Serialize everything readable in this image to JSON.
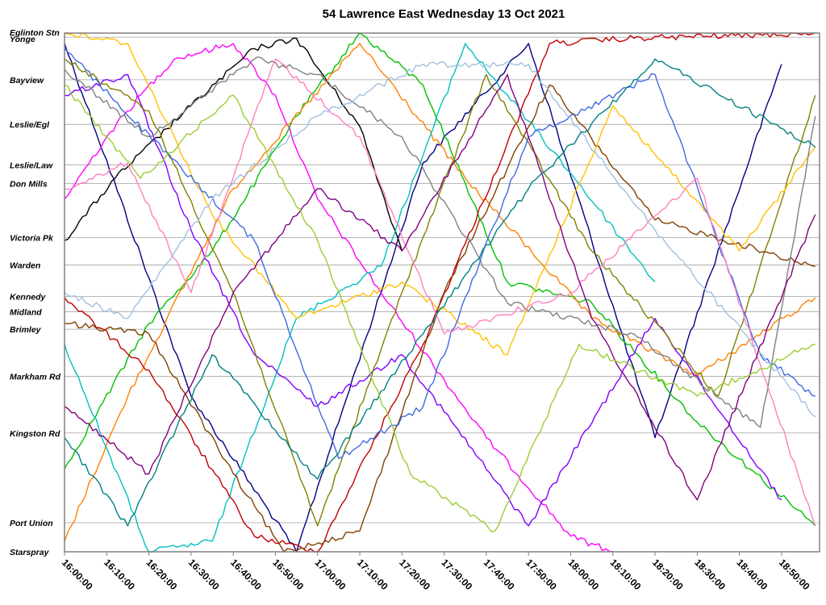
{
  "chart_data": {
    "type": "line",
    "title": "54 Lawrence East Wednesday 13 Oct 2021",
    "xlabel": "",
    "ylabel": "",
    "x_start": "16:00:00",
    "x_end": "18:59:00",
    "x_ticks": [
      "16:00:00",
      "16:10:00",
      "16:20:00",
      "16:30:00",
      "16:40:00",
      "16:50:00",
      "17:00:00",
      "17:10:00",
      "17:20:00",
      "17:30:00",
      "17:40:00",
      "17:50:00",
      "18:00:00",
      "18:10:00",
      "18:20:00",
      "18:30:00",
      "18:40:00",
      "18:50:00"
    ],
    "grid": true,
    "stops": [
      {
        "name": "Eglinton Stn",
        "fraction": 0.0
      },
      {
        "name": "Yonge",
        "fraction": 0.008
      },
      {
        "name": "Bayview",
        "fraction": 0.09
      },
      {
        "name": "Leslie/Egl",
        "fraction": 0.176
      },
      {
        "name": "Leslie/Law",
        "fraction": 0.254
      },
      {
        "name": "Don Mills",
        "fraction": 0.29
      },
      {
        "name": "Victoria Pk",
        "fraction": 0.394
      },
      {
        "name": "Warden",
        "fraction": 0.447
      },
      {
        "name": "Kennedy",
        "fraction": 0.508
      },
      {
        "name": "Midland",
        "fraction": 0.537
      },
      {
        "name": "Brimley",
        "fraction": 0.571
      },
      {
        "name": "Markham Rd",
        "fraction": 0.662
      },
      {
        "name": "Kingston Rd",
        "fraction": 0.771
      },
      {
        "name": "Port Union",
        "fraction": 0.944
      },
      {
        "name": "Starspray",
        "fraction": 1.0
      }
    ],
    "series": [
      {
        "color": "#000080",
        "values": [
          [
            0,
            0.02
          ],
          [
            30,
            0.7
          ],
          [
            55,
            1.0
          ],
          [
            85,
            0.25
          ],
          [
            110,
            0.02
          ],
          [
            140,
            0.78
          ],
          [
            170,
            0.06
          ]
        ]
      },
      {
        "color": "#ff00ff",
        "values": [
          [
            0,
            0.32
          ],
          [
            10,
            0.2
          ],
          [
            18,
            0.12
          ],
          [
            26,
            0.05
          ],
          [
            40,
            0.02
          ],
          [
            50,
            0.12
          ],
          [
            60,
            0.32
          ],
          [
            75,
            0.5
          ],
          [
            100,
            0.78
          ],
          [
            120,
            0.97
          ],
          [
            130,
            1.0
          ]
        ]
      },
      {
        "color": "#000000",
        "values": [
          [
            0,
            0.4
          ],
          [
            12,
            0.28
          ],
          [
            30,
            0.14
          ],
          [
            45,
            0.03
          ],
          [
            55,
            0.01
          ],
          [
            70,
            0.18
          ],
          [
            80,
            0.42
          ]
        ]
      },
      {
        "color": "#00c000",
        "values": [
          [
            0,
            0.84
          ],
          [
            20,
            0.56
          ],
          [
            35,
            0.42
          ],
          [
            55,
            0.16
          ],
          [
            70,
            0.0
          ],
          [
            85,
            0.1
          ],
          [
            105,
            0.48
          ],
          [
            125,
            0.52
          ],
          [
            150,
            0.75
          ],
          [
            178,
            0.95
          ]
        ]
      },
      {
        "color": "#ff8000",
        "values": [
          [
            0,
            0.98
          ],
          [
            15,
            0.7
          ],
          [
            40,
            0.3
          ],
          [
            70,
            0.02
          ],
          [
            95,
            0.28
          ],
          [
            125,
            0.55
          ],
          [
            150,
            0.66
          ],
          [
            178,
            0.51
          ]
        ]
      },
      {
        "color": "#00c0c0",
        "values": [
          [
            0,
            0.6
          ],
          [
            20,
            1.0
          ],
          [
            35,
            0.98
          ],
          [
            55,
            0.55
          ],
          [
            75,
            0.45
          ],
          [
            95,
            0.02
          ],
          [
            120,
            0.27
          ],
          [
            140,
            0.48
          ]
        ]
      },
      {
        "color": "#c00000",
        "values": [
          [
            0,
            0.51
          ],
          [
            20,
            0.65
          ],
          [
            45,
            0.97
          ],
          [
            60,
            1.0
          ],
          [
            85,
            0.6
          ],
          [
            115,
            0.02
          ],
          [
            135,
            0.01
          ],
          [
            178,
            0.0
          ]
        ]
      },
      {
        "color": "#8000ff",
        "values": [
          [
            0,
            0.12
          ],
          [
            15,
            0.08
          ],
          [
            30,
            0.38
          ],
          [
            45,
            0.62
          ],
          [
            60,
            0.72
          ],
          [
            80,
            0.62
          ],
          [
            110,
            0.95
          ],
          [
            140,
            0.55
          ],
          [
            170,
            0.9
          ]
        ]
      },
      {
        "color": "#808000",
        "values": [
          [
            0,
            0.05
          ],
          [
            20,
            0.15
          ],
          [
            40,
            0.5
          ],
          [
            60,
            0.95
          ],
          [
            80,
            0.5
          ],
          [
            100,
            0.08
          ],
          [
            125,
            0.42
          ],
          [
            155,
            0.7
          ],
          [
            178,
            0.12
          ]
        ]
      },
      {
        "color": "#804000",
        "values": [
          [
            0,
            0.56
          ],
          [
            20,
            0.58
          ],
          [
            40,
            0.85
          ],
          [
            52,
            1.0
          ],
          [
            70,
            0.96
          ],
          [
            90,
            0.5
          ],
          [
            115,
            0.1
          ],
          [
            140,
            0.36
          ],
          [
            178,
            0.45
          ]
        ]
      },
      {
        "color": "#ffc000",
        "values": [
          [
            0,
            0.0
          ],
          [
            15,
            0.02
          ],
          [
            35,
            0.35
          ],
          [
            55,
            0.55
          ],
          [
            80,
            0.48
          ],
          [
            105,
            0.62
          ],
          [
            130,
            0.14
          ],
          [
            160,
            0.42
          ],
          [
            178,
            0.22
          ]
        ]
      },
      {
        "color": "#808080",
        "values": [
          [
            0,
            0.07
          ],
          [
            20,
            0.2
          ],
          [
            45,
            0.05
          ],
          [
            60,
            0.08
          ],
          [
            80,
            0.2
          ],
          [
            105,
            0.52
          ],
          [
            135,
            0.58
          ],
          [
            165,
            0.76
          ],
          [
            178,
            0.16
          ]
        ]
      },
      {
        "color": "#4169e1",
        "values": [
          [
            0,
            0.03
          ],
          [
            25,
            0.24
          ],
          [
            45,
            0.4
          ],
          [
            65,
            0.82
          ],
          [
            85,
            0.72
          ],
          [
            110,
            0.2
          ],
          [
            140,
            0.08
          ],
          [
            165,
            0.62
          ],
          [
            178,
            0.7
          ]
        ]
      },
      {
        "color": "#ff80c0",
        "values": [
          [
            0,
            0.3
          ],
          [
            15,
            0.25
          ],
          [
            30,
            0.5
          ],
          [
            50,
            0.05
          ],
          [
            70,
            0.2
          ],
          [
            90,
            0.58
          ],
          [
            120,
            0.5
          ],
          [
            150,
            0.28
          ],
          [
            178,
            0.95
          ]
        ]
      },
      {
        "color": "#a0c0e0",
        "values": [
          [
            0,
            0.5
          ],
          [
            15,
            0.55
          ],
          [
            35,
            0.32
          ],
          [
            60,
            0.16
          ],
          [
            85,
            0.06
          ],
          [
            110,
            0.06
          ],
          [
            140,
            0.38
          ],
          [
            178,
            0.74
          ]
        ]
      },
      {
        "color": "#800080",
        "values": [
          [
            0,
            0.72
          ],
          [
            20,
            0.85
          ],
          [
            40,
            0.5
          ],
          [
            60,
            0.3
          ],
          [
            80,
            0.42
          ],
          [
            105,
            0.08
          ],
          [
            125,
            0.55
          ],
          [
            150,
            0.9
          ],
          [
            178,
            0.35
          ]
        ]
      },
      {
        "color": "#008080",
        "values": [
          [
            0,
            0.78
          ],
          [
            15,
            0.95
          ],
          [
            35,
            0.62
          ],
          [
            60,
            0.86
          ],
          [
            85,
            0.58
          ],
          [
            110,
            0.3
          ],
          [
            140,
            0.05
          ],
          [
            178,
            0.22
          ]
        ]
      },
      {
        "color": "#9acd32",
        "values": [
          [
            0,
            0.1
          ],
          [
            18,
            0.28
          ],
          [
            40,
            0.12
          ],
          [
            60,
            0.4
          ],
          [
            82,
            0.85
          ],
          [
            102,
            0.96
          ],
          [
            122,
            0.6
          ],
          [
            150,
            0.7
          ],
          [
            178,
            0.6
          ]
        ]
      }
    ]
  }
}
